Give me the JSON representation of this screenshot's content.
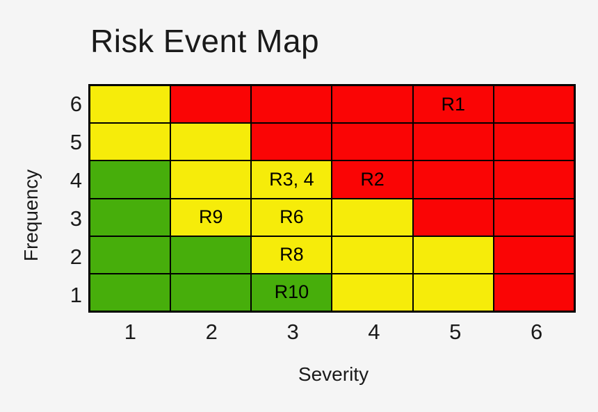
{
  "title": "Risk Event Map",
  "chart_data": {
    "type": "heatmap",
    "title": "Risk Event Map",
    "xlabel": "Severity",
    "ylabel": "Frequency",
    "x_ticks": [
      "1",
      "2",
      "3",
      "4",
      "5",
      "6"
    ],
    "y_ticks": [
      "6",
      "5",
      "4",
      "3",
      "2",
      "1"
    ],
    "x_range": [
      1,
      6
    ],
    "y_range": [
      1,
      6
    ],
    "legend": false,
    "risk_colors": {
      "green": "#47AE0B",
      "yellow": "#F6EC0A",
      "red": "#FA0505"
    },
    "rows": [
      {
        "frequency": "6",
        "cells": [
          {
            "risk": "yellow",
            "label": ""
          },
          {
            "risk": "red",
            "label": ""
          },
          {
            "risk": "red",
            "label": ""
          },
          {
            "risk": "red",
            "label": ""
          },
          {
            "risk": "red",
            "label": "R1"
          },
          {
            "risk": "red",
            "label": ""
          }
        ]
      },
      {
        "frequency": "5",
        "cells": [
          {
            "risk": "yellow",
            "label": ""
          },
          {
            "risk": "yellow",
            "label": ""
          },
          {
            "risk": "red",
            "label": ""
          },
          {
            "risk": "red",
            "label": ""
          },
          {
            "risk": "red",
            "label": ""
          },
          {
            "risk": "red",
            "label": ""
          }
        ]
      },
      {
        "frequency": "4",
        "cells": [
          {
            "risk": "green",
            "label": ""
          },
          {
            "risk": "yellow",
            "label": ""
          },
          {
            "risk": "yellow",
            "label": "R3, 4"
          },
          {
            "risk": "red",
            "label": "R2"
          },
          {
            "risk": "red",
            "label": ""
          },
          {
            "risk": "red",
            "label": ""
          }
        ]
      },
      {
        "frequency": "3",
        "cells": [
          {
            "risk": "green",
            "label": ""
          },
          {
            "risk": "yellow",
            "label": "R9"
          },
          {
            "risk": "yellow",
            "label": "R6"
          },
          {
            "risk": "yellow",
            "label": ""
          },
          {
            "risk": "red",
            "label": ""
          },
          {
            "risk": "red",
            "label": ""
          }
        ]
      },
      {
        "frequency": "2",
        "cells": [
          {
            "risk": "green",
            "label": ""
          },
          {
            "risk": "green",
            "label": ""
          },
          {
            "risk": "yellow",
            "label": "R8"
          },
          {
            "risk": "yellow",
            "label": ""
          },
          {
            "risk": "yellow",
            "label": ""
          },
          {
            "risk": "red",
            "label": ""
          }
        ]
      },
      {
        "frequency": "1",
        "cells": [
          {
            "risk": "green",
            "label": ""
          },
          {
            "risk": "green",
            "label": ""
          },
          {
            "risk": "green",
            "label": "R10"
          },
          {
            "risk": "yellow",
            "label": ""
          },
          {
            "risk": "yellow",
            "label": ""
          },
          {
            "risk": "red",
            "label": ""
          }
        ]
      }
    ],
    "events": [
      {
        "id": "R1",
        "severity": 5,
        "frequency": 6,
        "risk": "red"
      },
      {
        "id": "R2",
        "severity": 4,
        "frequency": 4,
        "risk": "red"
      },
      {
        "id": "R3, 4",
        "severity": 3,
        "frequency": 4,
        "risk": "yellow"
      },
      {
        "id": "R6",
        "severity": 3,
        "frequency": 3,
        "risk": "yellow"
      },
      {
        "id": "R9",
        "severity": 2,
        "frequency": 3,
        "risk": "yellow"
      },
      {
        "id": "R8",
        "severity": 3,
        "frequency": 2,
        "risk": "yellow"
      },
      {
        "id": "R10",
        "severity": 3,
        "frequency": 1,
        "risk": "green"
      }
    ]
  },
  "colors": {
    "background": "#F5F5F5",
    "grid_line": "#000000",
    "text": "#1A1A1A"
  }
}
